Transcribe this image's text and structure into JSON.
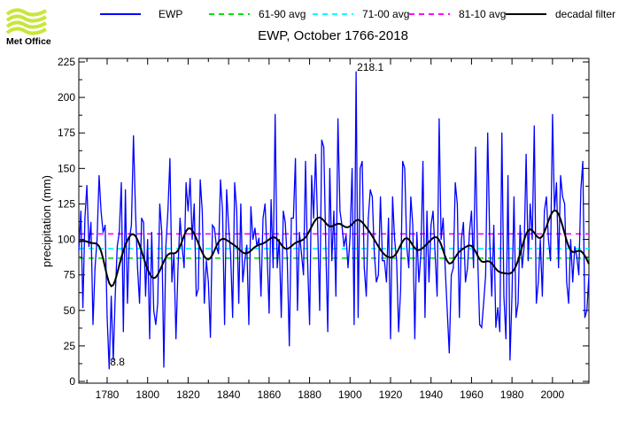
{
  "logo": {
    "text": "Met Office",
    "color": "#c8e63c"
  },
  "chart_data": {
    "type": "line",
    "title": "EWP, October 1766-2018",
    "xlabel": "",
    "ylabel": "precipitation (mm)",
    "xlim": [
      1766,
      2018
    ],
    "ylim": [
      0,
      225
    ],
    "x_ticks": [
      1780,
      1800,
      1820,
      1840,
      1860,
      1880,
      1900,
      1920,
      1940,
      1960,
      1980,
      2000
    ],
    "y_ticks": [
      0,
      25,
      50,
      75,
      100,
      125,
      150,
      175,
      200,
      225
    ],
    "grid": false,
    "legend_position": "top",
    "x_start": 1766,
    "series": [
      {
        "name": "EWP",
        "color": "#0000ff",
        "style": "solid",
        "values": [
          92,
          120,
          52,
          115,
          138,
          95,
          112,
          40,
          80,
          100,
          145,
          120,
          105,
          110,
          45,
          8.8,
          60,
          15,
          60,
          95,
          105,
          140,
          35,
          135,
          55,
          100,
          110,
          173,
          120,
          80,
          55,
          115,
          112,
          60,
          100,
          30,
          105,
          50,
          40,
          55,
          125,
          105,
          10,
          95,
          120,
          157,
          70,
          90,
          30,
          80,
          115,
          95,
          80,
          140,
          120,
          143,
          100,
          125,
          60,
          65,
          142,
          120,
          55,
          85,
          70,
          31,
          110,
          108,
          95,
          90,
          142,
          120,
          40,
          135,
          110,
          90,
          45,
          140,
          120,
          55,
          125,
          70,
          85,
          96,
          40,
          123,
          100,
          108,
          95,
          101,
          60,
          115,
          125,
          90,
          48,
          128,
          80,
          188,
          80,
          100,
          45,
          120,
          112,
          85,
          25,
          115,
          115,
          157,
          50,
          105,
          90,
          75,
          155,
          85,
          40,
          145,
          115,
          160,
          110,
          50,
          170,
          165,
          95,
          35,
          150,
          85,
          120,
          60,
          185,
          120,
          110,
          95,
          103,
          80,
          102,
          150,
          40,
          218.1,
          45,
          150,
          155,
          80,
          60,
          115,
          135,
          130,
          90,
          70,
          75,
          130,
          85,
          85,
          70,
          115,
          30,
          130,
          100,
          85,
          35,
          65,
          155,
          150,
          95,
          80,
          130,
          110,
          30,
          105,
          70,
          90,
          155,
          45,
          120,
          70,
          110,
          120,
          90,
          60,
          185,
          100,
          115,
          80,
          50,
          20,
          75,
          80,
          140,
          125,
          45,
          100,
          112,
          70,
          80,
          105,
          120,
          80,
          165,
          90,
          40,
          38,
          55,
          75,
          175,
          100,
          60,
          110,
          38,
          52,
          35,
          175,
          60,
          30,
          145,
          15,
          60,
          130,
          45,
          55,
          110,
          80,
          95,
          160,
          85,
          125,
          100,
          180,
          55,
          70,
          100,
          60,
          120,
          130,
          100,
          85,
          188,
          120,
          140,
          80,
          145,
          130,
          125,
          70,
          55,
          100,
          70,
          95,
          88,
          75,
          135,
          155,
          45,
          50,
          75
        ]
      },
      {
        "name": "61-90 avg",
        "color": "#00e000",
        "style": "dashed",
        "value": 86.8
      },
      {
        "name": "71-00 avg",
        "color": "#00ffff",
        "style": "dashed",
        "value": 93.6
      },
      {
        "name": "81-10 avg",
        "color": "#ff00ff",
        "style": "dashed",
        "value": 103.9
      },
      {
        "name": "decadal filter",
        "color": "#000000",
        "style": "solid"
      }
    ],
    "annotations": [
      {
        "text": "8.8",
        "x": 1781,
        "y": 8.8
      },
      {
        "text": "218.1",
        "x": 1903,
        "y": 218.1
      }
    ]
  }
}
